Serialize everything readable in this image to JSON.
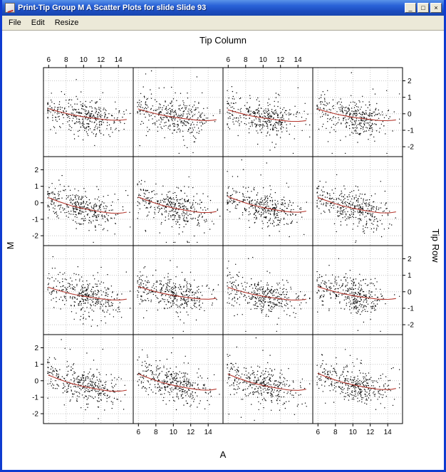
{
  "window": {
    "title": "Print-Tip Group M A Scatter Plots for slide Slide 93",
    "minimize_label": "_",
    "maximize_label": "□",
    "close_label": "×"
  },
  "menu": {
    "items": [
      "File",
      "Edit",
      "Resize"
    ]
  },
  "chart_data": {
    "type": "scatter",
    "title_top": "Tip Column",
    "xlabel_bottom": "A",
    "ylabel_left": "M",
    "ylabel_right": "Tip Row",
    "layout": {
      "rows": 4,
      "cols": 4,
      "grid": "dotted",
      "panel_border": "#000000"
    },
    "x_ticks": [
      6,
      8,
      10,
      12,
      14
    ],
    "y_ticks": [
      2,
      1,
      0,
      -1,
      -2
    ],
    "x_range": [
      5.4,
      15.7
    ],
    "y_range": [
      -2.6,
      2.8
    ],
    "points_per_panel": 360,
    "seed": 93,
    "point_color": "#000000",
    "curve_color": "#b5382f",
    "grid_color": "#c6c6c6",
    "curve_control_points": [
      [
        5.8,
        0.3
      ],
      [
        7.0,
        0.12
      ],
      [
        8.5,
        -0.08
      ],
      [
        10.0,
        -0.22
      ],
      [
        11.5,
        -0.33
      ],
      [
        13.0,
        -0.42
      ],
      [
        14.2,
        -0.43
      ],
      [
        15.7,
        -0.33
      ]
    ],
    "row_dip_factors": [
      1.0,
      1.35,
      1.1,
      1.4
    ],
    "left_cluster_fraction": 0.12,
    "outlier_fraction": 0.07,
    "scatter_sd": 0.52,
    "outlier_sd": 1.15,
    "axis_alternating": "lattice-style: x labels top on cols 1,3 / bottom on cols 2,4; y labels right on rows 1,3 / left on rows 2,4"
  }
}
